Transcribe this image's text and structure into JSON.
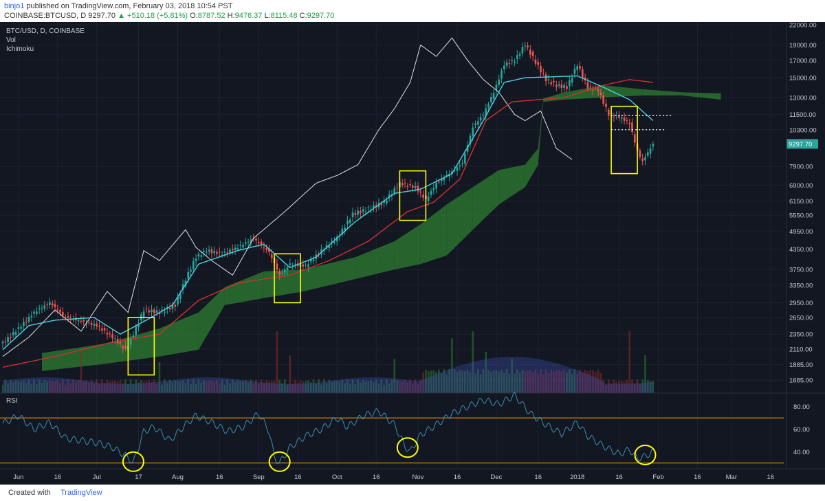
{
  "header": {
    "author": "binjo1",
    "published_text": "published on TradingView.com, February 03, 2018 10:54 PST",
    "symbol": "COINBASE:BTCUSD, D",
    "last": "9297.70",
    "change": "+510.18 (+5.81%)",
    "o_label": "O:",
    "o": "8787.52",
    "h_label": "H:",
    "h": "9476.37",
    "l_label": "L:",
    "l": "8115.48",
    "c_label": "C:",
    "c": "9297.70"
  },
  "legend": [
    "BTC/USD, D, COINBASE",
    "Vol",
    "Ichimoku"
  ],
  "rsi_label": "RSI",
  "footer": {
    "created": "Created with",
    "brand": "TradingView"
  },
  "colors": {
    "background": "#131722",
    "up": "#26a69a",
    "down": "#ef5350",
    "tenkan": "#4dd0e1",
    "kijun": "#d32f2f",
    "chikou": "#e0e0e0",
    "cloud_bull": "#2e7d32",
    "cloud_bear": "#b71c1c",
    "highlight": "#ffff00",
    "rsi": "#3b8fb0",
    "rsi_band": "#ff9800"
  },
  "chart_data": [
    {
      "type": "candlestick",
      "title": "BTC/USD, D, COINBASE",
      "scale": "log",
      "ylim": [
        1550,
        22000
      ],
      "price_ticks": [
        "22000.00",
        "19000.00",
        "17000.00",
        "15000.00",
        "13000.00",
        "11500.00",
        "10300.00",
        "9297.70",
        "7900.00",
        "6900.00",
        "6150.00",
        "5550.00",
        "4950.00",
        "4350.00",
        "3750.00",
        "3350.00",
        "2950.00",
        "2650.00",
        "2350.00",
        "2110.00",
        "1885.00",
        "1685.00"
      ],
      "last_price_label": "9297.70",
      "x_ticks": [
        "Jun",
        "16",
        "Jul",
        "17",
        "Aug",
        "16",
        "Sep",
        "16",
        "Oct",
        "16",
        "Nov",
        "16",
        "Dec",
        "16",
        "2018",
        "16",
        "Feb",
        "16",
        "Mar",
        "16"
      ],
      "dates": [
        "2017-05-26",
        "2018-02-03"
      ],
      "close_path": [
        [
          0,
          2200
        ],
        [
          6,
          2450
        ],
        [
          12,
          2750
        ],
        [
          18,
          2950
        ],
        [
          24,
          2650
        ],
        [
          30,
          2580
        ],
        [
          36,
          2500
        ],
        [
          42,
          2300
        ],
        [
          47,
          2100
        ],
        [
          50,
          2350
        ],
        [
          54,
          2800
        ],
        [
          60,
          2750
        ],
        [
          66,
          2900
        ],
        [
          70,
          3500
        ],
        [
          74,
          4100
        ],
        [
          78,
          4300
        ],
        [
          84,
          4200
        ],
        [
          90,
          4400
        ],
        [
          96,
          4700
        ],
        [
          102,
          4250
        ],
        [
          106,
          3600
        ],
        [
          110,
          3900
        ],
        [
          116,
          3850
        ],
        [
          122,
          4300
        ],
        [
          128,
          4700
        ],
        [
          134,
          5600
        ],
        [
          140,
          5800
        ],
        [
          146,
          6100
        ],
        [
          152,
          7000
        ],
        [
          158,
          6800
        ],
        [
          162,
          6200
        ],
        [
          166,
          7000
        ],
        [
          172,
          7600
        ],
        [
          176,
          8100
        ],
        [
          180,
          10500
        ],
        [
          184,
          11500
        ],
        [
          188,
          13500
        ],
        [
          192,
          16500
        ],
        [
          196,
          17000
        ],
        [
          200,
          19100
        ],
        [
          204,
          16800
        ],
        [
          208,
          14800
        ],
        [
          212,
          14200
        ],
        [
          216,
          14000
        ],
        [
          220,
          16500
        ],
        [
          224,
          14000
        ],
        [
          228,
          13700
        ],
        [
          232,
          11500
        ],
        [
          236,
          11300
        ],
        [
          240,
          10800
        ],
        [
          243,
          8800
        ],
        [
          245,
          8200
        ],
        [
          249,
          9297.7
        ]
      ],
      "tenkan_path": [
        [
          0,
          2100
        ],
        [
          10,
          2500
        ],
        [
          20,
          2600
        ],
        [
          35,
          2650
        ],
        [
          45,
          2350
        ],
        [
          55,
          2600
        ],
        [
          65,
          2900
        ],
        [
          75,
          3900
        ],
        [
          90,
          4300
        ],
        [
          100,
          4500
        ],
        [
          110,
          3800
        ],
        [
          120,
          4100
        ],
        [
          135,
          5300
        ],
        [
          150,
          6500
        ],
        [
          160,
          6700
        ],
        [
          172,
          7500
        ],
        [
          184,
          11000
        ],
        [
          192,
          14500
        ],
        [
          200,
          15000
        ],
        [
          220,
          15200
        ],
        [
          230,
          14000
        ],
        [
          240,
          12800
        ],
        [
          249,
          11000
        ]
      ],
      "kijun_path": [
        [
          0,
          1850
        ],
        [
          20,
          2000
        ],
        [
          40,
          2200
        ],
        [
          60,
          2350
        ],
        [
          75,
          3000
        ],
        [
          90,
          3400
        ],
        [
          110,
          3600
        ],
        [
          125,
          4000
        ],
        [
          140,
          4600
        ],
        [
          155,
          5700
        ],
        [
          165,
          6100
        ],
        [
          175,
          7200
        ],
        [
          185,
          11000
        ],
        [
          195,
          12600
        ],
        [
          215,
          13000
        ],
        [
          230,
          14200
        ],
        [
          240,
          14800
        ],
        [
          249,
          14500
        ]
      ],
      "chikou_path": [
        [
          0,
          2000
        ],
        [
          10,
          2300
        ],
        [
          20,
          2800
        ],
        [
          30,
          2400
        ],
        [
          40,
          3200
        ],
        [
          48,
          2750
        ],
        [
          54,
          4300
        ],
        [
          60,
          4000
        ],
        [
          70,
          5000
        ],
        [
          74,
          4400
        ],
        [
          80,
          4000
        ],
        [
          88,
          3600
        ],
        [
          96,
          4700
        ],
        [
          108,
          5700
        ],
        [
          120,
          7000
        ],
        [
          128,
          7400
        ],
        [
          136,
          8000
        ],
        [
          144,
          10300
        ],
        [
          150,
          12000
        ],
        [
          156,
          14500
        ],
        [
          160,
          19000
        ],
        [
          166,
          17500
        ],
        [
          172,
          20000
        ],
        [
          178,
          17000
        ],
        [
          184,
          14800
        ],
        [
          190,
          13500
        ],
        [
          196,
          11500
        ],
        [
          200,
          11000
        ],
        [
          206,
          11800
        ],
        [
          212,
          9000
        ],
        [
          218,
          8300
        ]
      ],
      "cloud": [
        [
          15,
          1800,
          2050
        ],
        [
          40,
          1900,
          2200
        ],
        [
          60,
          2000,
          2450
        ],
        [
          75,
          2100,
          2750
        ],
        [
          85,
          2900,
          3300
        ],
        [
          100,
          3050,
          3700
        ],
        [
          115,
          3200,
          3750
        ],
        [
          135,
          3500,
          4100
        ],
        [
          150,
          3750,
          4600
        ],
        [
          160,
          3900,
          5200
        ],
        [
          170,
          4150,
          6000
        ],
        [
          180,
          5000,
          6800
        ],
        [
          190,
          6000,
          7700
        ],
        [
          200,
          6800,
          8000
        ],
        [
          205,
          8000,
          9000
        ],
        [
          207,
          12600,
          12900
        ],
        [
          215,
          12800,
          13500
        ],
        [
          230,
          13000,
          14200
        ],
        [
          245,
          13200,
          13800
        ],
        [
          260,
          13200,
          13500
        ],
        [
          275,
          12800,
          13400
        ]
      ],
      "highlight_boxes": [
        {
          "from_day": 48,
          "to_day": 58,
          "high": 2650,
          "low": 1750
        },
        {
          "from_day": 104,
          "to_day": 114,
          "high": 4200,
          "low": 2950
        },
        {
          "from_day": 152,
          "to_day": 162,
          "high": 7650,
          "low": 5350
        },
        {
          "from_day": 233,
          "to_day": 243,
          "high": 12200,
          "low": 7500
        }
      ],
      "dotted_levels": [
        {
          "price": 11400,
          "from_day": 233,
          "to_day": 256
        },
        {
          "price": 10300,
          "from_day": 233,
          "to_day": 254
        }
      ],
      "volume": {
        "series_name": "Vol",
        "spikes": [
          [
            30,
            0.6
          ],
          [
            60,
            0.45
          ],
          [
            105,
            0.9
          ],
          [
            110,
            0.55
          ],
          [
            150,
            0.5
          ],
          [
            172,
            0.8
          ],
          [
            180,
            0.9
          ],
          [
            185,
            0.6
          ],
          [
            195,
            0.5
          ],
          [
            240,
            0.9
          ],
          [
            246,
            0.55
          ]
        ]
      }
    },
    {
      "type": "line",
      "title": "RSI",
      "ylim": [
        25,
        92
      ],
      "y_ticks": [
        "80.00",
        "60.00",
        "40.00"
      ],
      "bands": [
        70,
        30
      ],
      "values_path": [
        [
          0,
          65
        ],
        [
          6,
          72
        ],
        [
          12,
          60
        ],
        [
          18,
          66
        ],
        [
          24,
          52
        ],
        [
          30,
          50
        ],
        [
          36,
          48
        ],
        [
          42,
          44
        ],
        [
          48,
          35
        ],
        [
          50,
          30
        ],
        [
          54,
          58
        ],
        [
          58,
          62
        ],
        [
          64,
          50
        ],
        [
          70,
          64
        ],
        [
          74,
          72
        ],
        [
          80,
          66
        ],
        [
          86,
          58
        ],
        [
          92,
          62
        ],
        [
          98,
          74
        ],
        [
          102,
          58
        ],
        [
          104,
          35
        ],
        [
          106,
          30
        ],
        [
          110,
          44
        ],
        [
          116,
          54
        ],
        [
          122,
          60
        ],
        [
          128,
          70
        ],
        [
          132,
          62
        ],
        [
          138,
          72
        ],
        [
          144,
          76
        ],
        [
          150,
          64
        ],
        [
          154,
          45
        ],
        [
          156,
          40
        ],
        [
          160,
          55
        ],
        [
          166,
          64
        ],
        [
          172,
          74
        ],
        [
          178,
          80
        ],
        [
          184,
          86
        ],
        [
          190,
          82
        ],
        [
          196,
          90
        ],
        [
          202,
          74
        ],
        [
          208,
          64
        ],
        [
          214,
          56
        ],
        [
          220,
          66
        ],
        [
          224,
          54
        ],
        [
          230,
          45
        ],
        [
          236,
          38
        ],
        [
          240,
          42
        ],
        [
          243,
          34
        ],
        [
          246,
          36
        ],
        [
          249,
          40
        ]
      ],
      "circled_days": [
        50,
        106,
        155,
        246
      ]
    }
  ]
}
